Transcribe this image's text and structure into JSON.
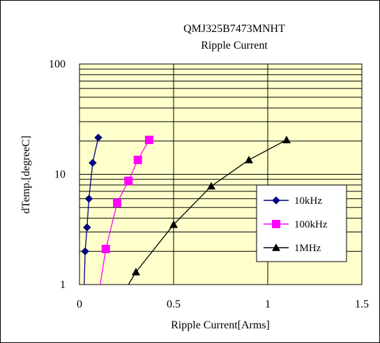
{
  "chart_data": {
    "type": "scatter",
    "title": "QMJ325B7473MNHT",
    "subtitle": "Ripple Current",
    "xlabel": "Ripple Current[Arms]",
    "ylabel": "dTemp.[degreeC]",
    "xlim": [
      0,
      1.5
    ],
    "ylim": [
      1,
      100
    ],
    "yscale": "log",
    "x_ticks": [
      "0",
      "0.5",
      "1",
      "1.5"
    ],
    "y_ticks": [
      "1",
      "10",
      "100"
    ],
    "plot_background": "#ffffcc",
    "grid": true,
    "legend_position": "right",
    "series": [
      {
        "name": "10kHz",
        "color": "#000080",
        "marker": "diamond",
        "points": [
          [
            0.03,
            2.0
          ],
          [
            0.04,
            3.3
          ],
          [
            0.05,
            6.0
          ],
          [
            0.07,
            12.7
          ],
          [
            0.1,
            21.5
          ]
        ],
        "curve": [
          [
            0.025,
            1.0
          ],
          [
            0.03,
            2.0
          ],
          [
            0.04,
            3.3
          ],
          [
            0.05,
            6.0
          ],
          [
            0.07,
            12.7
          ],
          [
            0.1,
            21.5
          ]
        ]
      },
      {
        "name": "100kHz",
        "color": "#ff00ff",
        "marker": "square",
        "points": [
          [
            0.14,
            2.1
          ],
          [
            0.2,
            5.5
          ],
          [
            0.26,
            8.7
          ],
          [
            0.31,
            13.5
          ],
          [
            0.37,
            20.5
          ]
        ],
        "curve": [
          [
            0.11,
            1.0
          ],
          [
            0.14,
            2.1
          ],
          [
            0.2,
            5.5
          ],
          [
            0.26,
            8.7
          ],
          [
            0.31,
            13.5
          ],
          [
            0.37,
            20.5
          ]
        ]
      },
      {
        "name": "1MHz",
        "color": "#000000",
        "marker": "triangle",
        "points": [
          [
            0.3,
            1.3
          ],
          [
            0.5,
            3.5
          ],
          [
            0.7,
            7.8
          ],
          [
            0.9,
            13.5
          ],
          [
            1.1,
            20.5
          ]
        ],
        "curve": [
          [
            0.26,
            1.0
          ],
          [
            0.3,
            1.3
          ],
          [
            0.5,
            3.5
          ],
          [
            0.7,
            7.8
          ],
          [
            0.9,
            13.5
          ],
          [
            1.1,
            20.5
          ]
        ]
      }
    ]
  }
}
